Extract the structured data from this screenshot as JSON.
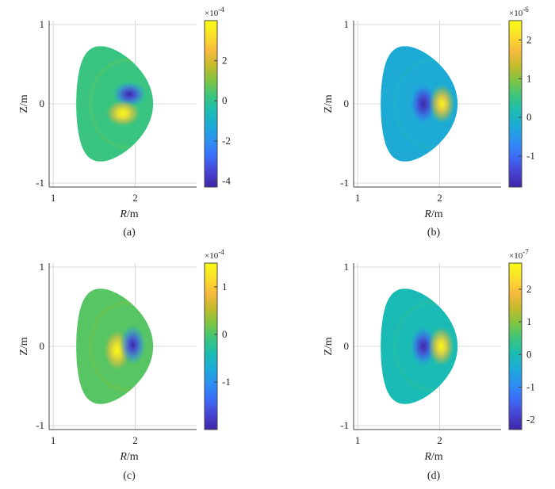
{
  "colors": {
    "colormap": [
      "#3e26a8",
      "#4743d4",
      "#3c6cf8",
      "#2d8ff3",
      "#1da9da",
      "#1bbcb3",
      "#3ac57f",
      "#7cc542",
      "#c2bb2a",
      "#f8ba3d",
      "#fbdf2a",
      "#f9fb15"
    ],
    "plasma_background": "#45b58f",
    "axes": "#444444",
    "grid": "#d9d9d9"
  },
  "chart_data": [
    {
      "type": "heatmap",
      "panel_label": "(a)",
      "xlabel": "R/m",
      "ylabel": "Z/m",
      "xlim": [
        0.95,
        2.75
      ],
      "ylim": [
        -1.05,
        1.05
      ],
      "xticks": [
        "1",
        "2"
      ],
      "yticks": [
        "-1",
        "0",
        "1"
      ],
      "colorbar": {
        "exponent_label": "×10",
        "exponent_power": "-4",
        "range": [
          -4.3,
          4.0
        ],
        "ticks": [
          "2",
          "0",
          "-2",
          "-4"
        ],
        "tick_values": [
          2,
          0,
          -2,
          -4
        ]
      },
      "background_value": 0.2,
      "features": [
        {
          "R": 1.93,
          "Z": 0.12,
          "value": -4.3
        },
        {
          "R": 1.85,
          "Z": -0.12,
          "value": 4.0
        }
      ]
    },
    {
      "type": "heatmap",
      "panel_label": "(b)",
      "xlabel": "R/m",
      "ylabel": "Z/m",
      "xlim": [
        0.95,
        2.75
      ],
      "ylim": [
        -1.05,
        1.05
      ],
      "xticks": [
        "1",
        "2"
      ],
      "yticks": [
        "-1",
        "0",
        "1"
      ],
      "colorbar": {
        "exponent_label": "×10",
        "exponent_power": "-6",
        "range": [
          -1.8,
          2.5
        ],
        "ticks": [
          "2",
          "1",
          "0",
          "-1"
        ],
        "tick_values": [
          2,
          1,
          0,
          -1
        ]
      },
      "background_value": -0.2,
      "features": [
        {
          "R": 1.8,
          "Z": 0.0,
          "value": -1.8
        },
        {
          "R": 2.03,
          "Z": 0.0,
          "value": 2.5
        }
      ]
    },
    {
      "type": "heatmap",
      "panel_label": "(c)",
      "xlabel": "R/m",
      "ylabel": "Z/m",
      "xlim": [
        0.95,
        2.75
      ],
      "ylim": [
        -1.05,
        1.05
      ],
      "xticks": [
        "1",
        "2"
      ],
      "yticks": [
        "-1",
        "0",
        "1"
      ],
      "colorbar": {
        "exponent_label": "×10",
        "exponent_power": "-4",
        "range": [
          -2.0,
          1.5
        ],
        "ticks": [
          "1",
          "0",
          "-1"
        ],
        "tick_values": [
          1,
          0,
          -1
        ]
      },
      "background_value": 0.05,
      "features": [
        {
          "R": 1.78,
          "Z": -0.05,
          "value": 1.5
        },
        {
          "R": 1.97,
          "Z": 0.02,
          "value": -2.0
        }
      ]
    },
    {
      "type": "heatmap",
      "panel_label": "(d)",
      "xlabel": "R/m",
      "ylabel": "Z/m",
      "xlim": [
        0.95,
        2.75
      ],
      "ylim": [
        -1.05,
        1.05
      ],
      "xticks": [
        "1",
        "2"
      ],
      "yticks": [
        "-1",
        "0",
        "1"
      ],
      "colorbar": {
        "exponent_label": "×10",
        "exponent_power": "-7",
        "range": [
          -2.3,
          2.8
        ],
        "ticks": [
          "2",
          "1",
          "0",
          "-1",
          "-2"
        ],
        "tick_values": [
          2,
          1,
          0,
          -1,
          -2
        ]
      },
      "background_value": 0.0,
      "features": [
        {
          "R": 1.8,
          "Z": 0.0,
          "value": -2.3
        },
        {
          "R": 2.02,
          "Z": 0.0,
          "value": 2.8
        }
      ]
    }
  ]
}
